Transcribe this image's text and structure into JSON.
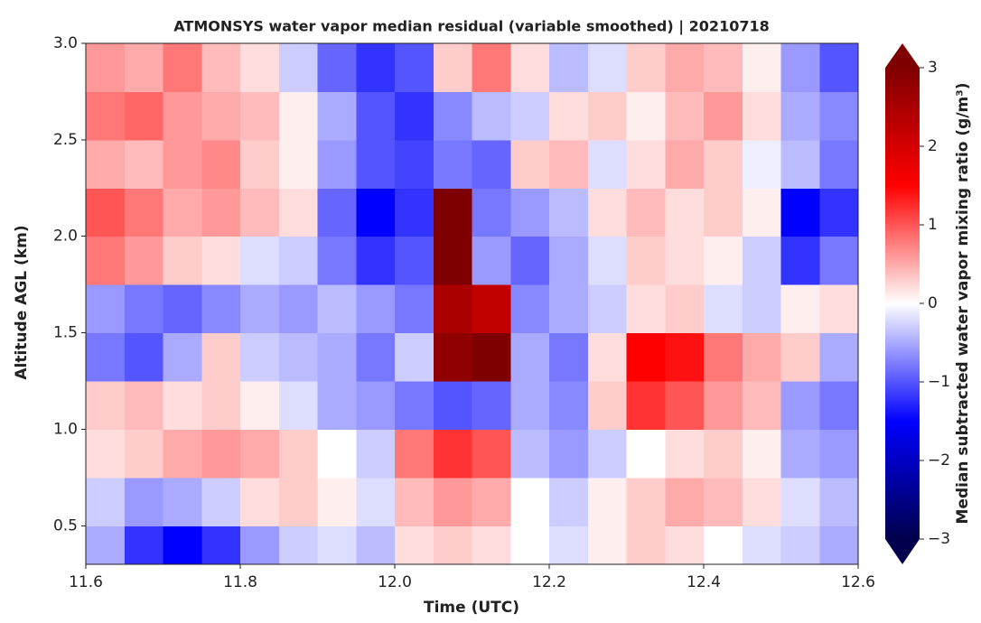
{
  "chart_data": {
    "type": "heatmap",
    "title": "ATMONSYS water vapor median residual (variable smoothed) | 20210718",
    "xlabel": "Time (UTC)",
    "ylabel": "Altitude AGL (km)",
    "colorbar_label": "Median subtracted water vapor mixing ratio (g/m³)",
    "x_bins": [
      11.6,
      11.65,
      11.7,
      11.75,
      11.8,
      11.85,
      11.9,
      11.95,
      12.0,
      12.05,
      12.1,
      12.15,
      12.2,
      12.25,
      12.3,
      12.35,
      12.4,
      12.45,
      12.5,
      12.55,
      12.6
    ],
    "y_bins": [
      0.3,
      0.5,
      0.75,
      1.0,
      1.25,
      1.5,
      1.75,
      2.0,
      2.25,
      2.5,
      2.75,
      3.0
    ],
    "z": [
      [
        -0.5,
        -1.2,
        -1.5,
        -1.2,
        -0.6,
        -0.3,
        -0.2,
        -0.4,
        0.2,
        0.3,
        0.2,
        0,
        -0.2,
        0.1,
        0.3,
        0.2,
        0,
        -0.2,
        -0.3,
        -0.5
      ],
      [
        -0.3,
        -0.6,
        -0.5,
        -0.3,
        0.2,
        0.3,
        0.1,
        -0.2,
        0.4,
        0.6,
        0.5,
        0,
        -0.3,
        0.1,
        0.3,
        0.5,
        0.4,
        0.2,
        -0.2,
        -0.4
      ],
      [
        0.2,
        0.3,
        0.5,
        0.6,
        0.5,
        0.3,
        0,
        -0.3,
        0.8,
        1.2,
        1.0,
        -0.4,
        -0.6,
        -0.3,
        0,
        0.2,
        0.3,
        0.1,
        -0.5,
        -0.6
      ],
      [
        0.3,
        0.4,
        0.2,
        0.3,
        0.1,
        -0.2,
        -0.5,
        -0.6,
        -0.8,
        -1.0,
        -0.9,
        -0.5,
        -0.7,
        0.3,
        1.2,
        1.0,
        0.6,
        0.4,
        -0.6,
        -0.8
      ],
      [
        -0.8,
        -1.0,
        -0.5,
        0.3,
        -0.3,
        -0.4,
        -0.5,
        -0.8,
        -0.3,
        2.8,
        3.0,
        -0.5,
        -0.8,
        0.2,
        1.5,
        1.4,
        0.8,
        0.5,
        0.3,
        -0.5
      ],
      [
        -0.6,
        -0.8,
        -0.9,
        -0.7,
        -0.5,
        -0.6,
        -0.4,
        -0.6,
        -0.8,
        2.5,
        2.2,
        -0.7,
        -0.5,
        -0.3,
        0.2,
        0.3,
        -0.2,
        -0.3,
        0.1,
        0.2
      ],
      [
        0.8,
        0.6,
        0.3,
        0.2,
        -0.2,
        -0.3,
        -0.8,
        -1.2,
        -1.0,
        3.0,
        -0.6,
        -0.9,
        -0.5,
        -0.2,
        0.3,
        0.2,
        0.1,
        -0.3,
        -1.2,
        -0.8
      ],
      [
        1.0,
        0.8,
        0.5,
        0.6,
        0.4,
        0.2,
        -0.9,
        -1.5,
        -1.2,
        3.0,
        -0.8,
        -0.6,
        -0.4,
        0.2,
        0.4,
        0.2,
        0.3,
        0.1,
        -1.5,
        -1.2
      ],
      [
        0.5,
        0.4,
        0.6,
        0.7,
        0.3,
        0.1,
        -0.6,
        -1.0,
        -1.1,
        -0.8,
        -0.9,
        0.3,
        0.4,
        -0.2,
        0.2,
        0.5,
        0.3,
        -0.1,
        -0.4,
        -0.8
      ],
      [
        0.8,
        0.9,
        0.6,
        0.5,
        0.4,
        0.1,
        -0.5,
        -1.0,
        -1.2,
        -0.7,
        -0.4,
        -0.3,
        0.2,
        0.3,
        0.1,
        0.4,
        0.6,
        0.2,
        -0.5,
        -0.7
      ],
      [
        0.6,
        0.5,
        0.8,
        0.4,
        0.2,
        -0.3,
        -0.9,
        -1.2,
        -1.0,
        0.3,
        0.8,
        0.2,
        -0.4,
        -0.2,
        0.3,
        0.5,
        0.4,
        0.1,
        -0.6,
        -1.0
      ]
    ],
    "xlim": [
      11.6,
      12.6
    ],
    "xticks": [
      11.6,
      11.8,
      {
        "value": 12,
        "label": "12.0"
      },
      12.2,
      12.4,
      12.6
    ],
    "ylim": [
      0.3,
      3.0
    ],
    "yticks": [
      0.5,
      {
        "value": 1,
        "label": "1.0"
      },
      1.5,
      {
        "value": 2,
        "label": "2.0"
      },
      2.5,
      {
        "value": 3,
        "label": "3.0"
      }
    ],
    "clim": [
      -3,
      3
    ],
    "cticks": [
      {
        "value": -3,
        "label": "−3"
      },
      {
        "value": -2,
        "label": "−2"
      },
      {
        "value": -1,
        "label": "−1"
      },
      0,
      1,
      2,
      3
    ],
    "colormap": [
      "#00004c",
      "#0000ff",
      "#ffffff",
      "#ff0000",
      "#7f0000"
    ]
  }
}
